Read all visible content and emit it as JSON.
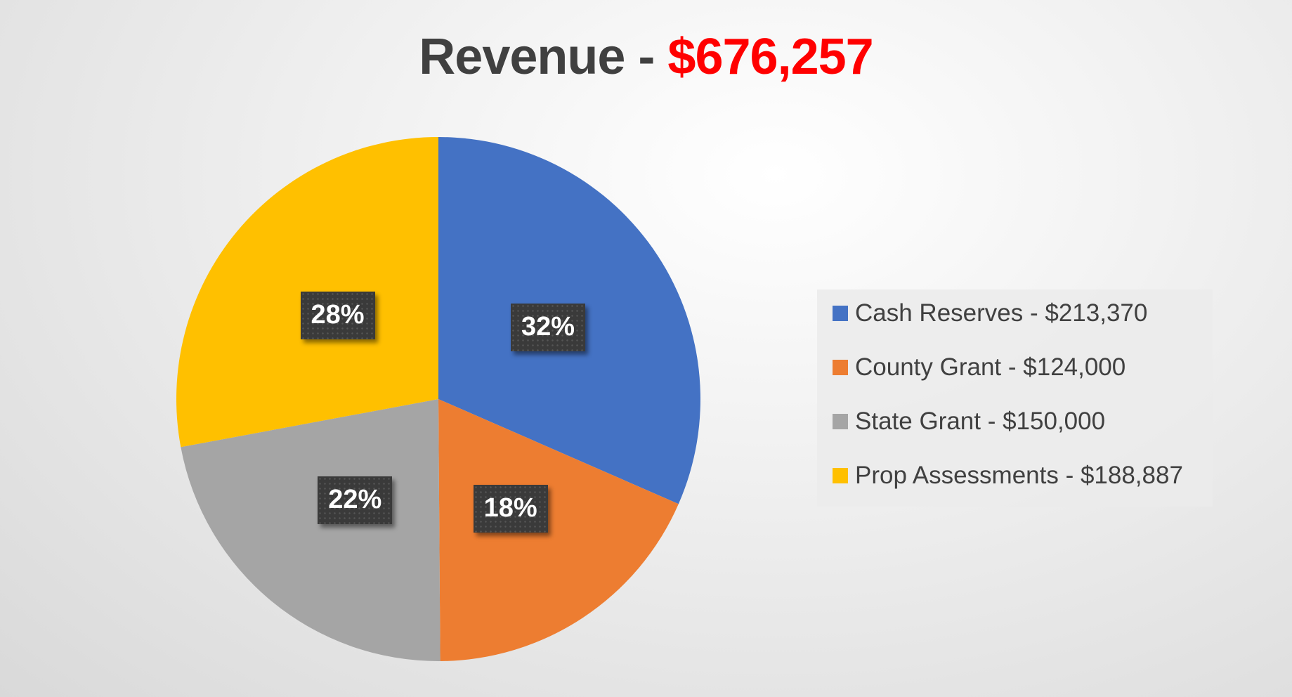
{
  "chart_data": {
    "type": "pie",
    "title": "Revenue - ",
    "title_total": "$676,257",
    "categories": [
      "Cash Reserves",
      "County Grant",
      "State Grant",
      "Prop Assessments"
    ],
    "values": [
      213370,
      124000,
      150000,
      188887
    ],
    "percent_labels": [
      "32%",
      "18%",
      "22%",
      "28%"
    ],
    "legend_labels": [
      "Cash Reserves - $213,370",
      "County Grant - $124,000",
      "State Grant - $150,000",
      "Prop Assessments - $188,887"
    ],
    "colors": [
      "#4472c4",
      "#ed7d31",
      "#a5a5a5",
      "#ffc000"
    ],
    "legend_position": "right",
    "start_angle": "top, clockwise"
  }
}
